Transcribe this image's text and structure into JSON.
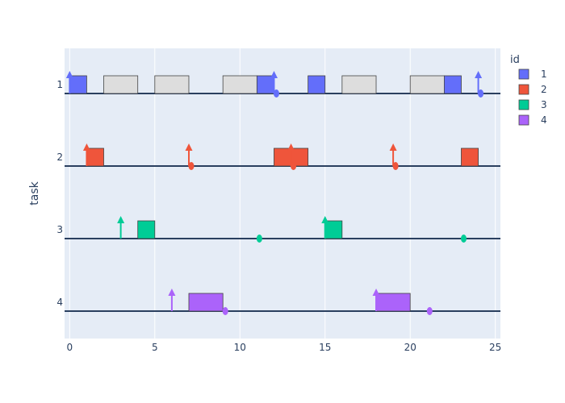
{
  "chart_data": {
    "type": "gantt",
    "ylabel": "task",
    "legend_title": "id",
    "legend_position": "top-right",
    "xlim": [
      -0.3,
      25.3
    ],
    "x_ticks": [
      0,
      5,
      10,
      15,
      20,
      25
    ],
    "tasks": [
      "1",
      "2",
      "3",
      "4"
    ],
    "colors": {
      "1": "#636efa",
      "2": "#ef553b",
      "3": "#00cc96",
      "4": "#ab63fa",
      "idle": "#dddddd",
      "baseline": "#2a3f5f",
      "plot_bg": "#e5ecf6"
    },
    "segments": [
      {
        "task": "1",
        "start": 0,
        "end": 1,
        "id": "1"
      },
      {
        "task": "1",
        "start": 2,
        "end": 4,
        "id": "idle"
      },
      {
        "task": "1",
        "start": 5,
        "end": 7,
        "id": "idle"
      },
      {
        "task": "1",
        "start": 9,
        "end": 11,
        "id": "idle"
      },
      {
        "task": "1",
        "start": 11,
        "end": 12,
        "id": "1"
      },
      {
        "task": "1",
        "start": 14,
        "end": 15,
        "id": "1"
      },
      {
        "task": "1",
        "start": 16,
        "end": 18,
        "id": "idle"
      },
      {
        "task": "1",
        "start": 20,
        "end": 22,
        "id": "idle"
      },
      {
        "task": "1",
        "start": 22,
        "end": 23,
        "id": "1"
      },
      {
        "task": "2",
        "start": 1,
        "end": 2,
        "id": "2"
      },
      {
        "task": "2",
        "start": 12,
        "end": 14,
        "id": "2"
      },
      {
        "task": "2",
        "start": 23,
        "end": 24,
        "id": "2"
      },
      {
        "task": "3",
        "start": 4,
        "end": 5,
        "id": "3"
      },
      {
        "task": "3",
        "start": 15,
        "end": 16,
        "id": "3"
      },
      {
        "task": "4",
        "start": 7,
        "end": 9,
        "id": "4"
      },
      {
        "task": "4",
        "start": 18,
        "end": 20,
        "id": "4"
      }
    ],
    "arrivals": [
      {
        "task": "1",
        "x": 0
      },
      {
        "task": "1",
        "x": 12
      },
      {
        "task": "1",
        "x": 24
      },
      {
        "task": "2",
        "x": 1
      },
      {
        "task": "2",
        "x": 7
      },
      {
        "task": "2",
        "x": 13
      },
      {
        "task": "2",
        "x": 19
      },
      {
        "task": "3",
        "x": 3
      },
      {
        "task": "3",
        "x": 15
      },
      {
        "task": "4",
        "x": 6
      },
      {
        "task": "4",
        "x": 18
      }
    ],
    "deadlines": [
      {
        "task": "1",
        "x": 12
      },
      {
        "task": "1",
        "x": 24
      },
      {
        "task": "2",
        "x": 7
      },
      {
        "task": "2",
        "x": 13
      },
      {
        "task": "2",
        "x": 19
      },
      {
        "task": "3",
        "x": 11
      },
      {
        "task": "3",
        "x": 23
      },
      {
        "task": "4",
        "x": 9
      },
      {
        "task": "4",
        "x": 21
      }
    ],
    "legend": [
      {
        "id": "1",
        "label": "1"
      },
      {
        "id": "2",
        "label": "2"
      },
      {
        "id": "3",
        "label": "3"
      },
      {
        "id": "4",
        "label": "4"
      }
    ]
  }
}
